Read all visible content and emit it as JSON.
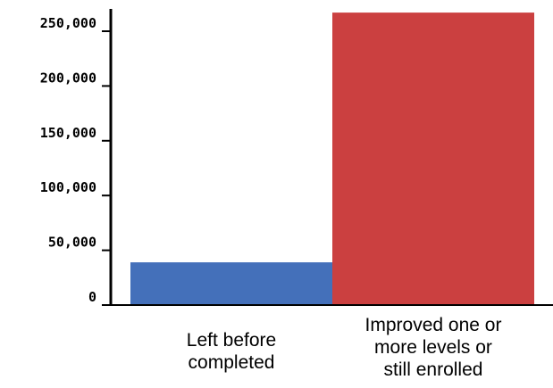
{
  "chart_data": {
    "type": "bar",
    "title": "",
    "xlabel": "",
    "ylabel": "",
    "ylim": [
      0,
      270000
    ],
    "yticks": [
      0,
      50000,
      100000,
      150000,
      200000,
      250000
    ],
    "ytick_labels": [
      "0",
      "50,000",
      "100,000",
      "150,000",
      "200,000",
      "250,000"
    ],
    "categories": [
      [
        "Left before",
        "completed"
      ],
      [
        "Improved one or",
        "more levels or",
        "still enrolled"
      ]
    ],
    "values": [
      39000,
      267000
    ],
    "colors": [
      "#4470BA",
      "#CB4040"
    ],
    "grid": false,
    "legend": "none"
  }
}
